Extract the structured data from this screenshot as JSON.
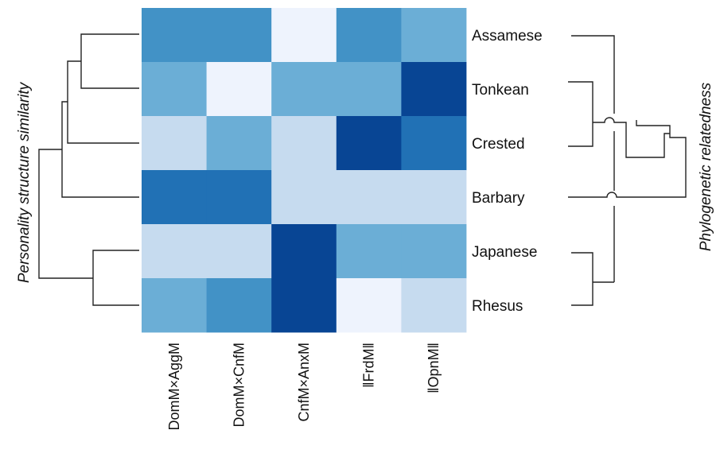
{
  "chart_data": {
    "type": "heatmap",
    "rows": [
      "Assamese",
      "Tonkean",
      "Crested",
      "Barbary",
      "Japanese",
      "Rhesus"
    ],
    "columns": [
      "DomM×AggM",
      "DomM×CnfM",
      "CnfM×AnxM",
      "‖FrdM‖",
      "‖OpnM‖"
    ],
    "values": [
      [
        6,
        6,
        0,
        6,
        4
      ],
      [
        4,
        0,
        4,
        4,
        9
      ],
      [
        1,
        4,
        1,
        9,
        7
      ],
      [
        7,
        7,
        2,
        2,
        1
      ],
      [
        2,
        1,
        9,
        4,
        4
      ],
      [
        4,
        6,
        9,
        0,
        2
      ]
    ],
    "value_scale": "ordinal color intensity (0 = lightest, 9 = darkest)",
    "colors": [
      "#eef3fd",
      "#c6dbef",
      "#9ecae1",
      "#6baed6",
      "#4292c6",
      "#2171b5",
      "#084594"
    ],
    "left_axis_title": "Personality structure similarity",
    "right_axis_title": "Phylogenetic relatedness",
    "left_dendrogram": "((((Assamese, Tonkean), Crested), Barbary), (Japanese, Rhesus))",
    "right_dendrogram": "((Assamese, (Tonkean, Crested)), Barbary, (Japanese, Rhesus))"
  }
}
